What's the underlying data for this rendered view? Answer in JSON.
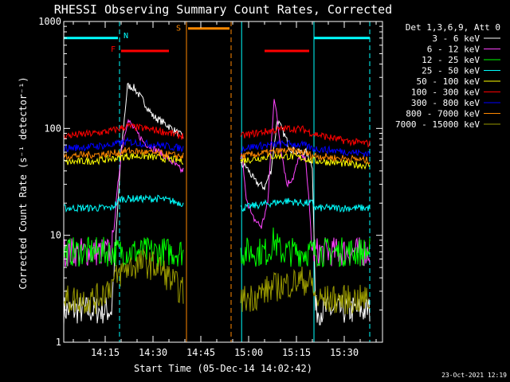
{
  "chart_data": {
    "type": "line",
    "title": "RHESSI Observing Summary Count Rates, Corrected",
    "xlabel": "Start Time (05-Dec-14 14:02:42)",
    "ylabel": "Corrected Count Rate (s⁻¹ detector⁻¹)",
    "ylog": true,
    "ylim": [
      1,
      1000
    ],
    "xlim_minutes": [
      0,
      100
    ],
    "yticks": [
      {
        "v": 1,
        "label": "1"
      },
      {
        "v": 10,
        "label": "10"
      },
      {
        "v": 100,
        "label": "100"
      },
      {
        "v": 1000,
        "label": "1000"
      }
    ],
    "xticks": [
      {
        "m": 13,
        "label": "14:15"
      },
      {
        "m": 28,
        "label": "14:30"
      },
      {
        "m": 43,
        "label": "14:45"
      },
      {
        "m": 58,
        "label": "15:00"
      },
      {
        "m": 73,
        "label": "15:15"
      },
      {
        "m": 88,
        "label": "15:30"
      }
    ],
    "legend_header": "Det 1,3,6,9, Att 0",
    "series": [
      {
        "name": "3 - 6 keV",
        "color": "#ffffff",
        "t": [
          0,
          10,
          15,
          18,
          20,
          22,
          25,
          28,
          32,
          37,
          56,
          57,
          60,
          63,
          65,
          67,
          69,
          71,
          73,
          76,
          78,
          79,
          80,
          82,
          85,
          90,
          96
        ],
        "v": [
          2,
          2,
          2,
          60,
          250,
          240,
          180,
          130,
          110,
          85,
          45,
          45,
          32,
          28,
          40,
          120,
          90,
          65,
          60,
          60,
          45,
          2,
          2,
          2,
          2,
          2,
          2
        ]
      },
      {
        "name": "6 - 12 keV",
        "color": "#ff44ff",
        "t": [
          0,
          10,
          15,
          18,
          20,
          22,
          25,
          28,
          32,
          37,
          56,
          57,
          59,
          62,
          64,
          66,
          68,
          70,
          72,
          74,
          76,
          78,
          80,
          85,
          90,
          96
        ],
        "v": [
          7,
          7,
          7,
          60,
          120,
          100,
          75,
          65,
          55,
          40,
          55,
          25,
          15,
          12,
          20,
          200,
          70,
          30,
          35,
          55,
          50,
          7,
          7,
          7,
          7,
          7
        ]
      },
      {
        "name": "12 - 25 keV",
        "color": "#00ff00",
        "t": [
          0,
          10,
          15,
          20,
          25,
          30,
          37,
          56,
          60,
          64,
          66,
          68,
          75,
          78,
          80,
          85,
          90,
          96
        ],
        "v": [
          7,
          7,
          7,
          7,
          7,
          7,
          7,
          7,
          7,
          7,
          9,
          7,
          7,
          7,
          7,
          7,
          7,
          7
        ]
      },
      {
        "name": "25 - 50 keV",
        "color": "#00ffff",
        "t": [
          0,
          10,
          15,
          18,
          25,
          30,
          37,
          56,
          60,
          65,
          70,
          75,
          78,
          79,
          85,
          90,
          96
        ],
        "v": [
          18,
          18,
          18,
          22,
          22,
          22,
          20,
          18,
          19,
          20,
          21,
          20,
          20,
          18,
          18,
          18,
          18
        ]
      },
      {
        "name": "50 - 100 keV",
        "color": "#ffff00",
        "t": [
          0,
          10,
          15,
          20,
          25,
          30,
          37,
          56,
          60,
          65,
          70,
          75,
          78,
          85,
          90,
          96
        ],
        "v": [
          48,
          50,
          52,
          55,
          55,
          53,
          50,
          50,
          52,
          55,
          55,
          53,
          50,
          48,
          46,
          45
        ]
      },
      {
        "name": "100 - 300 keV",
        "color": "#ff0000",
        "t": [
          0,
          10,
          15,
          20,
          25,
          30,
          37,
          56,
          60,
          65,
          70,
          75,
          78,
          85,
          90,
          96
        ],
        "v": [
          85,
          90,
          95,
          105,
          100,
          95,
          85,
          85,
          90,
          95,
          100,
          98,
          90,
          80,
          75,
          72
        ]
      },
      {
        "name": "300 - 800 keV",
        "color": "#0000ff",
        "t": [
          0,
          10,
          15,
          20,
          25,
          30,
          37,
          56,
          60,
          65,
          70,
          75,
          78,
          85,
          90,
          96
        ],
        "v": [
          65,
          68,
          70,
          75,
          72,
          70,
          65,
          65,
          68,
          70,
          72,
          70,
          65,
          62,
          60,
          58
        ]
      },
      {
        "name": "800 - 7000 keV",
        "color": "#ff8800",
        "t": [
          0,
          10,
          15,
          20,
          25,
          30,
          37,
          56,
          60,
          65,
          70,
          75,
          78,
          85,
          90,
          96
        ],
        "v": [
          55,
          57,
          58,
          62,
          60,
          58,
          55,
          55,
          57,
          60,
          62,
          60,
          56,
          53,
          52,
          50
        ]
      },
      {
        "name": "7000 - 15000 keV",
        "color": "#999900",
        "t": [
          0,
          10,
          15,
          18,
          20,
          25,
          30,
          33,
          37,
          56,
          60,
          63,
          65,
          70,
          75,
          78,
          79,
          85,
          90,
          96
        ],
        "v": [
          2.5,
          2.5,
          3.5,
          4.5,
          5,
          5.5,
          5,
          4,
          3,
          2.5,
          2.7,
          3,
          3.2,
          3.5,
          3.8,
          3.5,
          2.5,
          2.5,
          2.5,
          2.5
        ]
      }
    ],
    "annotations": [
      {
        "text": "N",
        "color": "#00ffff",
        "m": 19.5,
        "y": 700
      },
      {
        "text": "F",
        "color": "#ff0000",
        "m": 15.5,
        "y": 520
      },
      {
        "text": "S",
        "color": "#ff8800",
        "m": 36,
        "y": 820
      }
    ],
    "bars": [
      {
        "color": "#00ffff",
        "from": 0,
        "to": 17,
        "y": 700
      },
      {
        "color": "#00ffff",
        "from": 78.5,
        "to": 96,
        "y": 700
      },
      {
        "color": "#ff0000",
        "from": 18,
        "to": 33,
        "y": 530
      },
      {
        "color": "#ff0000",
        "from": 63,
        "to": 77,
        "y": 530
      },
      {
        "color": "#ff8800",
        "from": 39,
        "to": 52,
        "y": 860
      }
    ],
    "vlines": [
      {
        "color": "#00ffff",
        "m": 17.5,
        "dash": true
      },
      {
        "color": "#ff8800",
        "m": 38.5,
        "dash": false
      },
      {
        "color": "#ff8800",
        "m": 52.5,
        "dash": true
      },
      {
        "color": "#00ffff",
        "m": 55.8,
        "dash": false
      },
      {
        "color": "#00ffff",
        "m": 78.5,
        "dash": false
      },
      {
        "color": "#00ffff",
        "m": 96,
        "dash": true
      }
    ]
  },
  "footer": {
    "timestamp": "23-Oct-2021 12:19"
  }
}
